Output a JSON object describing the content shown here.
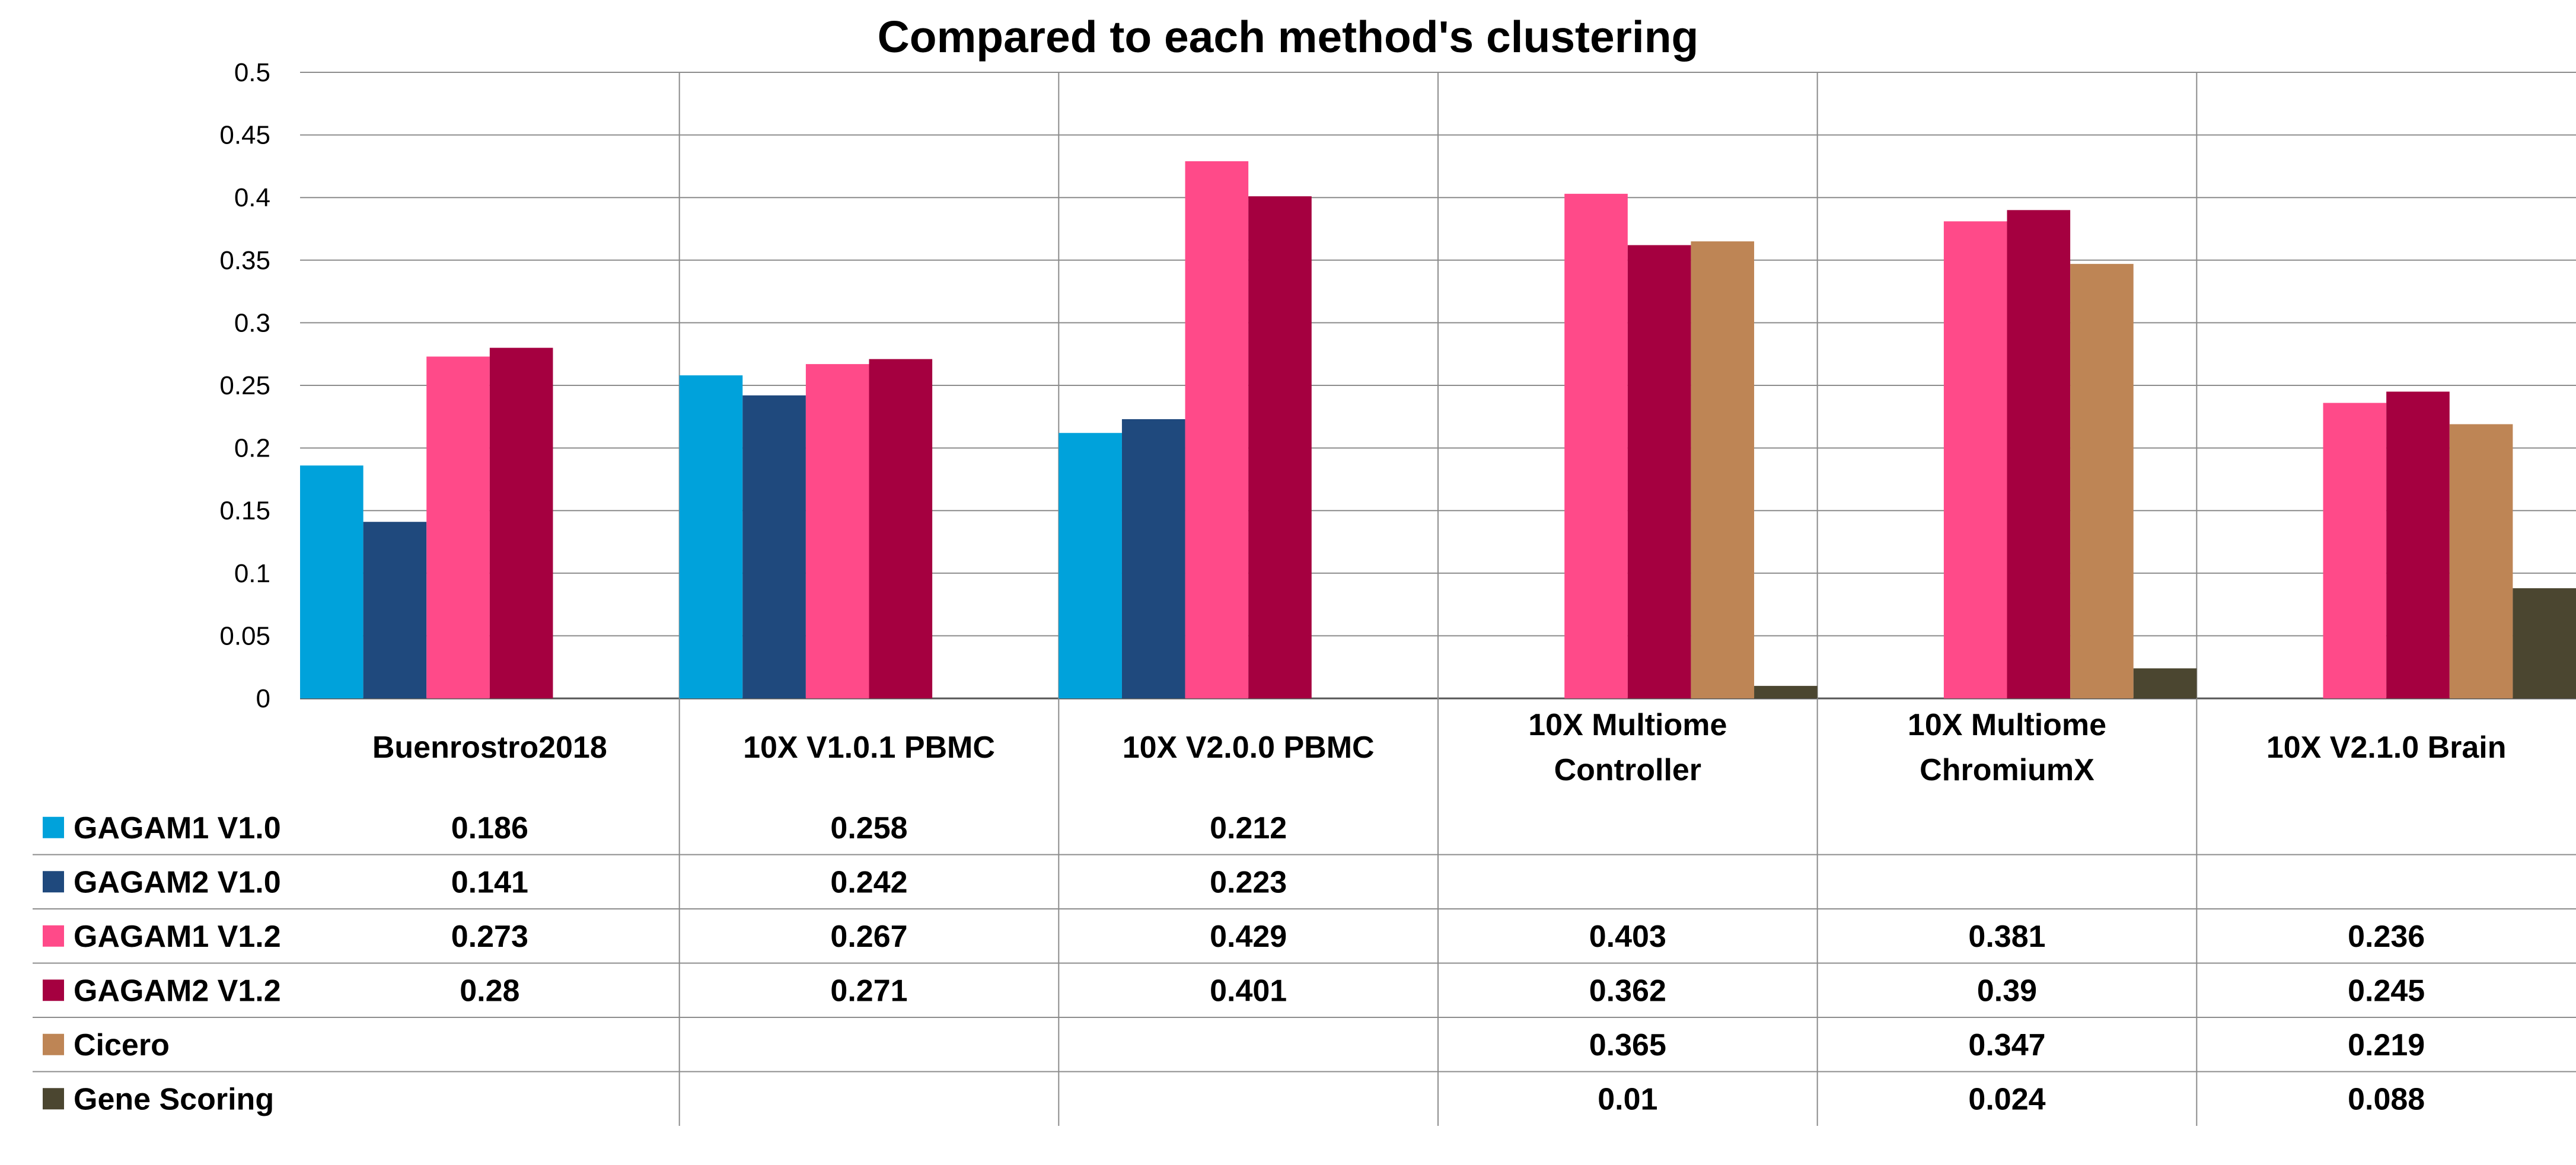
{
  "chart_data": {
    "type": "bar",
    "title": "Compared to each method's clustering",
    "ylim": [
      0,
      0.5
    ],
    "yticks": [
      "0",
      "0.05",
      "0.1",
      "0.15",
      "0.2",
      "0.25",
      "0.3",
      "0.35",
      "0.4",
      "0.45",
      "0.5"
    ],
    "grid": true,
    "legend": "data-table-below",
    "categories": [
      [
        "Buenrostro2018"
      ],
      [
        "10X V1.0.1 PBMC"
      ],
      [
        "10X V2.0.0 PBMC"
      ],
      [
        "10X Multiome",
        "Controller"
      ],
      [
        "10X Multiome",
        "ChromiumX"
      ],
      [
        "10X V2.1.0 Brain"
      ]
    ],
    "series": [
      {
        "name": "GAGAM1 V1.0",
        "color": "#00A2DB",
        "values": [
          0.186,
          0.258,
          0.212,
          null,
          null,
          null
        ],
        "labels": [
          "0.186",
          "0.258",
          "0.212",
          "",
          "",
          ""
        ]
      },
      {
        "name": "GAGAM2 V1.0",
        "color": "#1F497D",
        "values": [
          0.141,
          0.242,
          0.223,
          null,
          null,
          null
        ],
        "labels": [
          "0.141",
          "0.242",
          "0.223",
          "",
          "",
          ""
        ]
      },
      {
        "name": "GAGAM1 V1.2",
        "color": "#FF4A89",
        "values": [
          0.273,
          0.267,
          0.429,
          0.403,
          0.381,
          0.236
        ],
        "labels": [
          "0.273",
          "0.267",
          "0.429",
          "0.403",
          "0.381",
          "0.236"
        ]
      },
      {
        "name": "GAGAM2 V1.2",
        "color": "#A50040",
        "values": [
          0.28,
          0.271,
          0.401,
          0.362,
          0.39,
          0.245
        ],
        "labels": [
          "0.28",
          "0.271",
          "0.401",
          "0.362",
          "0.39",
          "0.245"
        ]
      },
      {
        "name": "Cicero",
        "color": "#BE8555",
        "values": [
          null,
          null,
          null,
          0.365,
          0.347,
          0.219
        ],
        "labels": [
          "",
          "",
          "",
          "0.365",
          "0.347",
          "0.219"
        ]
      },
      {
        "name": "Gene Scoring",
        "color": "#4B4630",
        "values": [
          null,
          null,
          null,
          0.01,
          0.024,
          0.088
        ],
        "labels": [
          "",
          "",
          "",
          "0.01",
          "0.024",
          "0.088"
        ]
      }
    ]
  }
}
